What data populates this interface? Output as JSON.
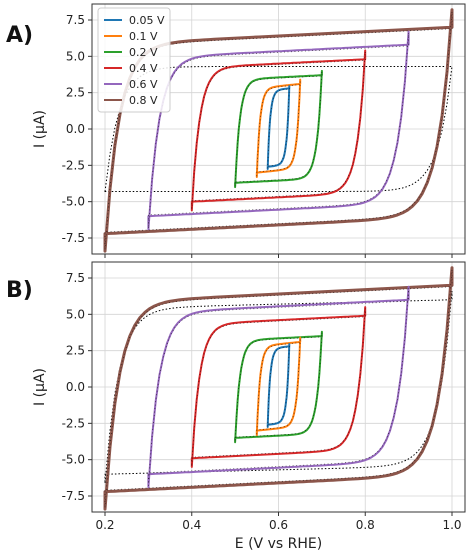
{
  "chart_data": [
    {
      "type": "line",
      "panel_label": "A)",
      "xlabel": "",
      "ylabel": "I (μA)",
      "xlim": [
        0.17,
        1.03
      ],
      "ylim": [
        -8.6,
        8.6
      ],
      "yticks": [
        "7.5",
        "5.0",
        "2.5",
        "0.0",
        "-2.5",
        "-5.0",
        "-7.5"
      ],
      "ytick_values": [
        7.5,
        5.0,
        2.5,
        0.0,
        -2.5,
        -5.0,
        -7.5
      ],
      "grid": true,
      "legend_position": "top-left",
      "series": [
        {
          "name": "0.05 V",
          "color": "#1f77b4",
          "e_min": 0.575,
          "e_max": 0.625,
          "i_top": 2.8,
          "i_bottom": -2.6,
          "slope": 6.0
        },
        {
          "name": "0.1 V",
          "color": "#ff7f0e",
          "e_min": 0.55,
          "e_max": 0.65,
          "i_top": 3.1,
          "i_bottom": -3.0,
          "slope": 6.0
        },
        {
          "name": "0.2 V",
          "color": "#2ca02c",
          "e_min": 0.5,
          "e_max": 0.7,
          "i_top": 3.7,
          "i_bottom": -3.7,
          "slope": 3.0
        },
        {
          "name": "0.4 V",
          "color": "#d62728",
          "e_min": 0.4,
          "e_max": 0.8,
          "i_top": 4.8,
          "i_bottom": -5.0,
          "slope": 3.0
        },
        {
          "name": "0.6 V",
          "color": "#9467bd",
          "e_min": 0.3,
          "e_max": 0.9,
          "i_top": 5.8,
          "i_bottom": -6.0,
          "slope": 3.0
        },
        {
          "name": "0.8 V",
          "color": "#8c564b",
          "e_min": 0.2,
          "e_max": 1.0,
          "i_top": 7.0,
          "i_bottom": -7.2,
          "slope": 3.0
        }
      ],
      "simulated_outer": {
        "e_min": 0.2,
        "e_max": 1.0,
        "i_top": 4.3,
        "i_bottom": -4.3,
        "slope": 0.0
      }
    },
    {
      "type": "line",
      "panel_label": "B)",
      "xlabel": "E (V vs RHE)",
      "ylabel": "I (μA)",
      "xlim": [
        0.17,
        1.03
      ],
      "ylim": [
        -8.6,
        8.6
      ],
      "xticks": [
        "0.2",
        "0.4",
        "0.6",
        "0.8",
        "1.0"
      ],
      "xtick_values": [
        0.2,
        0.4,
        0.6,
        0.8,
        1.0
      ],
      "yticks": [
        "7.5",
        "5.0",
        "2.5",
        "0.0",
        "-2.5",
        "-5.0",
        "-7.5"
      ],
      "ytick_values": [
        7.5,
        5.0,
        2.5,
        0.0,
        -2.5,
        -5.0,
        -7.5
      ],
      "grid": true,
      "series": [
        {
          "name": "0.05 V",
          "color": "#1f77b4",
          "e_min": 0.575,
          "e_max": 0.625,
          "i_top": 2.8,
          "i_bottom": -2.6,
          "slope": 6.0
        },
        {
          "name": "0.1 V",
          "color": "#ff7f0e",
          "e_min": 0.55,
          "e_max": 0.65,
          "i_top": 3.1,
          "i_bottom": -3.0,
          "slope": 6.0
        },
        {
          "name": "0.2 V",
          "color": "#2ca02c",
          "e_min": 0.5,
          "e_max": 0.7,
          "i_top": 3.5,
          "i_bottom": -3.5,
          "slope": 3.0
        },
        {
          "name": "0.4 V",
          "color": "#d62728",
          "e_min": 0.4,
          "e_max": 0.8,
          "i_top": 4.9,
          "i_bottom": -4.9,
          "slope": 3.0
        },
        {
          "name": "0.6 V",
          "color": "#9467bd",
          "e_min": 0.3,
          "e_max": 0.9,
          "i_top": 6.0,
          "i_bottom": -6.0,
          "slope": 3.0
        },
        {
          "name": "0.8 V",
          "color": "#8c564b",
          "e_min": 0.2,
          "e_max": 1.0,
          "i_top": 7.0,
          "i_bottom": -7.2,
          "slope": 3.0
        }
      ],
      "simulated_outer": {
        "e_min": 0.2,
        "e_max": 1.0,
        "i_top": 6.0,
        "i_bottom": -6.0,
        "slope": 1.5
      }
    }
  ]
}
